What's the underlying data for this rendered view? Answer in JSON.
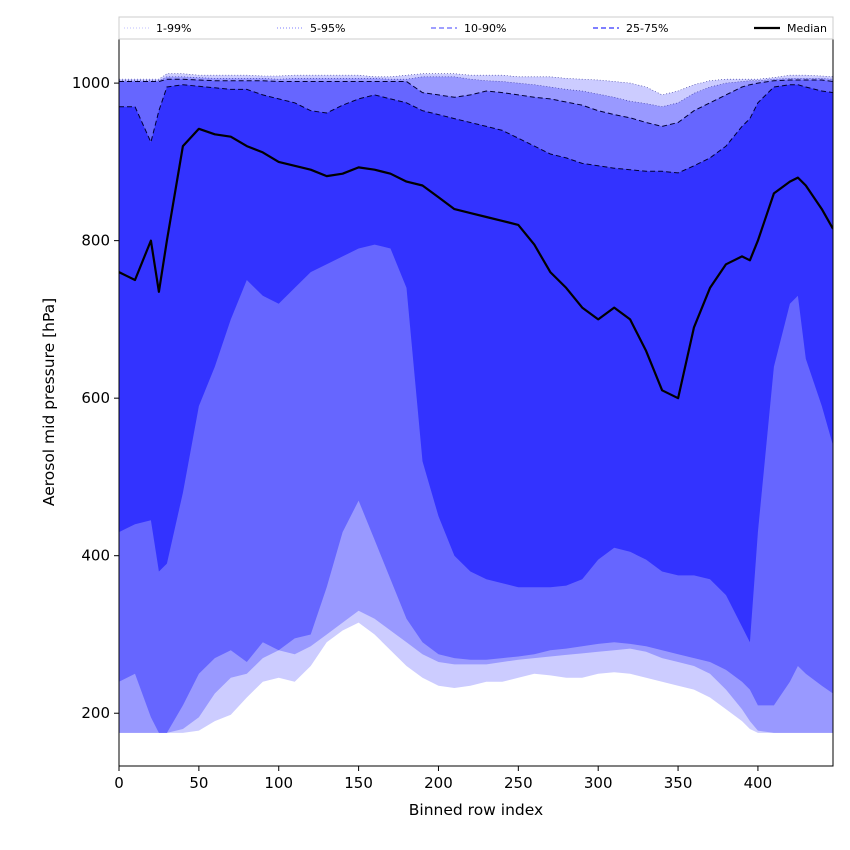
{
  "chart_data": {
    "type": "area",
    "title": "",
    "xlabel": "Binned row index",
    "ylabel": "Aerosol mid pressure [hPa]",
    "xlim": [
      0,
      447
    ],
    "ylim": [
      133,
      1056
    ],
    "x_ticks": [
      0,
      50,
      100,
      150,
      200,
      250,
      300,
      350,
      400
    ],
    "y_ticks": [
      200,
      400,
      600,
      800,
      1000
    ],
    "legend_position": "top, spanning full width above plot",
    "colors": {
      "band_1_99": "#ccccff",
      "band_5_95": "#9999ff",
      "band_10_90": "#6666ff",
      "band_25_75": "#3333ff",
      "median": "#000000",
      "background": "#ffffff"
    },
    "legend": [
      {
        "name": "1-99%",
        "color": "#ccccff",
        "dash": "dotted"
      },
      {
        "name": "5-95%",
        "color": "#9999ff",
        "dash": "dotted"
      },
      {
        "name": "10-90%",
        "color": "#6666ff",
        "dash": "dashed"
      },
      {
        "name": "25-75%",
        "color": "#3333ff",
        "dash": "dashed"
      },
      {
        "name": "Median",
        "color": "#000000",
        "dash": "solid"
      }
    ],
    "x": [
      0,
      10,
      20,
      25,
      30,
      40,
      50,
      60,
      70,
      80,
      90,
      100,
      110,
      120,
      130,
      140,
      150,
      160,
      170,
      180,
      190,
      200,
      210,
      220,
      230,
      240,
      250,
      260,
      270,
      280,
      290,
      300,
      310,
      320,
      330,
      340,
      350,
      360,
      370,
      380,
      390,
      395,
      400,
      410,
      420,
      425,
      430,
      440,
      447
    ],
    "series": [
      {
        "name": "1-99%",
        "lower": [
          175,
          175,
          175,
          175,
          175,
          175,
          178,
          190,
          198,
          220,
          240,
          245,
          240,
          260,
          290,
          305,
          315,
          300,
          280,
          260,
          245,
          235,
          232,
          235,
          240,
          240,
          245,
          250,
          248,
          245,
          245,
          250,
          252,
          250,
          245,
          240,
          235,
          230,
          220,
          205,
          190,
          180,
          175,
          175,
          175,
          175,
          175,
          175,
          175
        ],
        "upper": [
          1005,
          1005,
          1005,
          1005,
          1012,
          1012,
          1010,
          1010,
          1010,
          1010,
          1009,
          1009,
          1010,
          1010,
          1010,
          1010,
          1010,
          1008,
          1008,
          1010,
          1012,
          1012,
          1012,
          1010,
          1010,
          1010,
          1008,
          1008,
          1008,
          1006,
          1005,
          1004,
          1002,
          1000,
          995,
          985,
          990,
          998,
          1003,
          1005,
          1005,
          1005,
          1005,
          1007,
          1010,
          1010,
          1010,
          1009,
          1008
        ]
      },
      {
        "name": "5-95%",
        "lower": [
          175,
          175,
          175,
          175,
          175,
          180,
          195,
          225,
          245,
          250,
          270,
          280,
          275,
          285,
          300,
          315,
          330,
          320,
          305,
          290,
          275,
          265,
          262,
          262,
          262,
          265,
          268,
          270,
          272,
          274,
          276,
          278,
          280,
          282,
          278,
          270,
          265,
          260,
          250,
          230,
          205,
          190,
          178,
          175,
          175,
          175,
          175,
          175,
          175
        ],
        "upper": [
          1003,
          1003,
          1003,
          1003,
          1008,
          1008,
          1007,
          1006,
          1006,
          1006,
          1006,
          1005,
          1006,
          1006,
          1006,
          1006,
          1006,
          1006,
          1005,
          1005,
          1008,
          1008,
          1008,
          1005,
          1003,
          1002,
          1000,
          998,
          995,
          992,
          990,
          986,
          982,
          977,
          974,
          970,
          975,
          987,
          995,
          1000,
          1002,
          1003,
          1003,
          1005,
          1006,
          1006,
          1006,
          1006,
          1005
        ]
      },
      {
        "name": "10-90%",
        "lower": [
          240,
          250,
          195,
          175,
          175,
          210,
          250,
          270,
          280,
          265,
          290,
          280,
          295,
          300,
          360,
          430,
          470,
          420,
          370,
          320,
          290,
          275,
          270,
          268,
          268,
          270,
          272,
          275,
          280,
          282,
          285,
          288,
          290,
          288,
          285,
          280,
          275,
          270,
          265,
          255,
          240,
          230,
          210,
          210,
          240,
          260,
          250,
          235,
          225
        ],
        "upper": [
          1002,
          1002,
          1002,
          1002,
          1005,
          1005,
          1004,
          1003,
          1003,
          1003,
          1003,
          1002,
          1002,
          1002,
          1002,
          1002,
          1002,
          1002,
          1002,
          1002,
          988,
          985,
          982,
          985,
          990,
          988,
          985,
          982,
          980,
          976,
          972,
          965,
          960,
          956,
          950,
          945,
          950,
          965,
          975,
          985,
          995,
          998,
          1000,
          1003,
          1004,
          1004,
          1004,
          1004,
          1002
        ]
      },
      {
        "name": "25-75%",
        "lower": [
          430,
          440,
          445,
          380,
          390,
          480,
          590,
          640,
          700,
          750,
          730,
          720,
          740,
          760,
          770,
          780,
          790,
          795,
          790,
          740,
          520,
          450,
          400,
          380,
          370,
          365,
          360,
          360,
          360,
          362,
          370,
          395,
          410,
          405,
          395,
          380,
          375,
          375,
          370,
          350,
          310,
          290,
          430,
          640,
          720,
          730,
          650,
          590,
          540
        ],
        "upper": [
          970,
          970,
          925,
          965,
          995,
          998,
          996,
          994,
          992,
          992,
          985,
          980,
          975,
          965,
          962,
          972,
          980,
          985,
          980,
          975,
          965,
          960,
          955,
          950,
          945,
          940,
          930,
          920,
          910,
          905,
          898,
          895,
          892,
          890,
          888,
          888,
          886,
          895,
          905,
          920,
          945,
          955,
          975,
          995,
          998,
          998,
          995,
          990,
          988
        ]
      },
      {
        "name": "Median",
        "values": [
          760,
          750,
          800,
          735,
          800,
          920,
          942,
          935,
          932,
          920,
          912,
          900,
          895,
          890,
          882,
          885,
          893,
          890,
          885,
          875,
          870,
          855,
          840,
          835,
          830,
          825,
          820,
          795,
          760,
          740,
          715,
          700,
          715,
          700,
          660,
          610,
          600,
          690,
          740,
          770,
          780,
          775,
          800,
          860,
          875,
          880,
          870,
          840,
          815
        ]
      }
    ]
  }
}
